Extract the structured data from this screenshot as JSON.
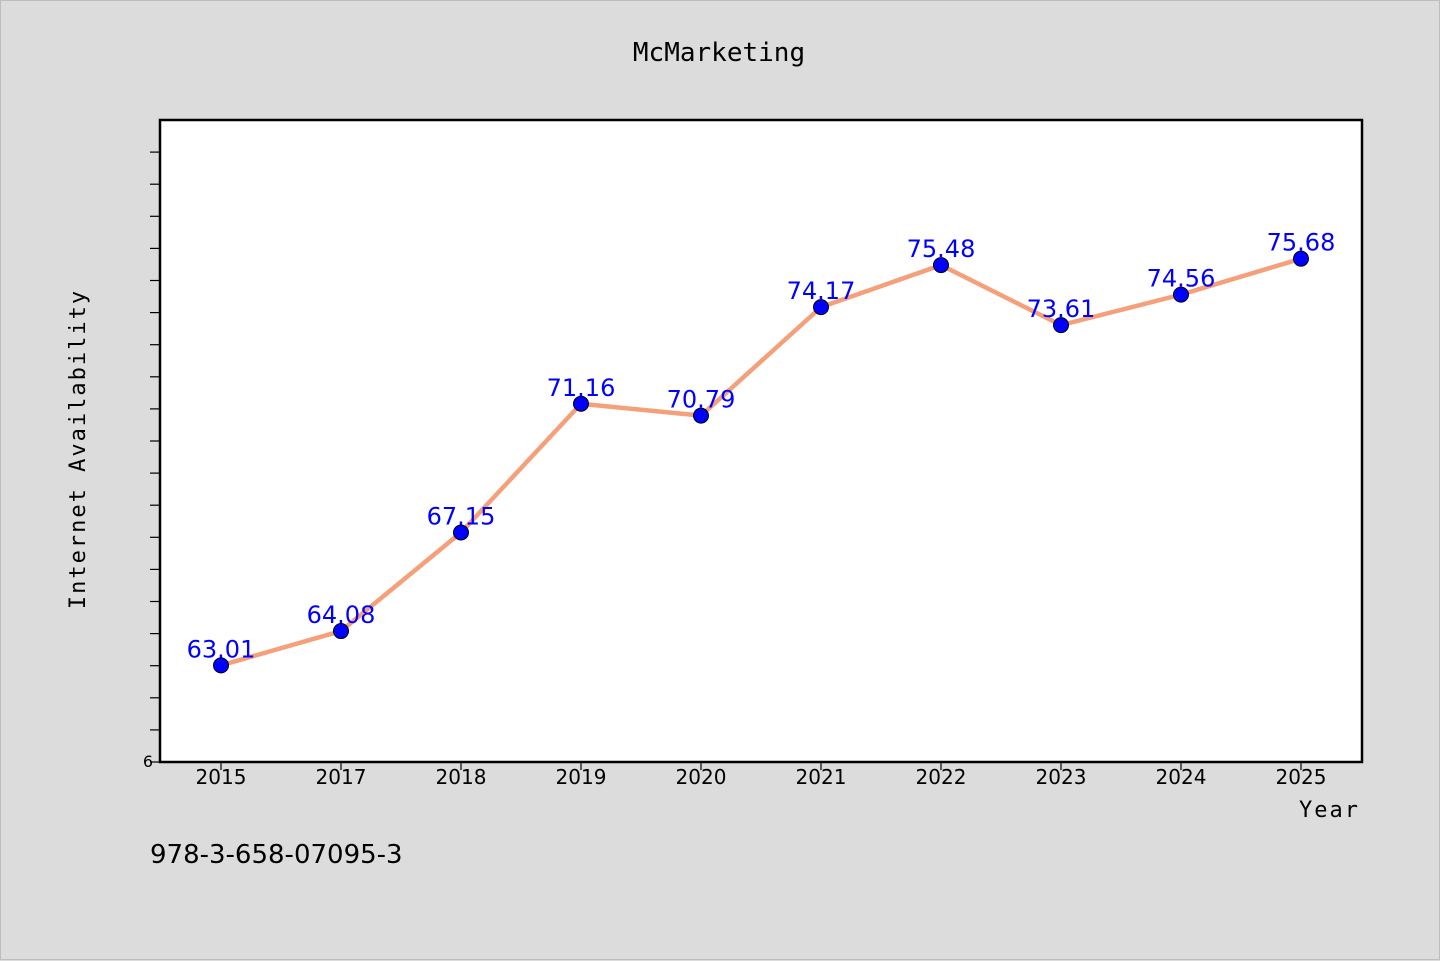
{
  "chart_data": {
    "type": "line",
    "title": "McMarketing",
    "xlabel": "Year",
    "ylabel": "Internet Availability",
    "categories": [
      "2015",
      "2017",
      "2018",
      "2019",
      "2020",
      "2021",
      "2022",
      "2023",
      "2024",
      "2025"
    ],
    "series": [
      {
        "values": [
          63.01,
          64.08,
          67.15,
          71.16,
          70.79,
          74.17,
          75.48,
          73.61,
          74.56,
          75.68
        ],
        "labels": [
          "63.01",
          "64.08",
          "67.15",
          "71.16",
          "70.79",
          "74.17",
          "75.48",
          "73.61",
          "74.56",
          "75.68"
        ]
      }
    ],
    "ylim": [
      60,
      80
    ],
    "y_tick_labels": [
      "6"
    ],
    "line_color": "#f4a07a",
    "marker_color": "#0000ff",
    "label_color": "#0000ff",
    "grid": false
  },
  "footer": {
    "isbn": "978-3-658-07095-3"
  }
}
